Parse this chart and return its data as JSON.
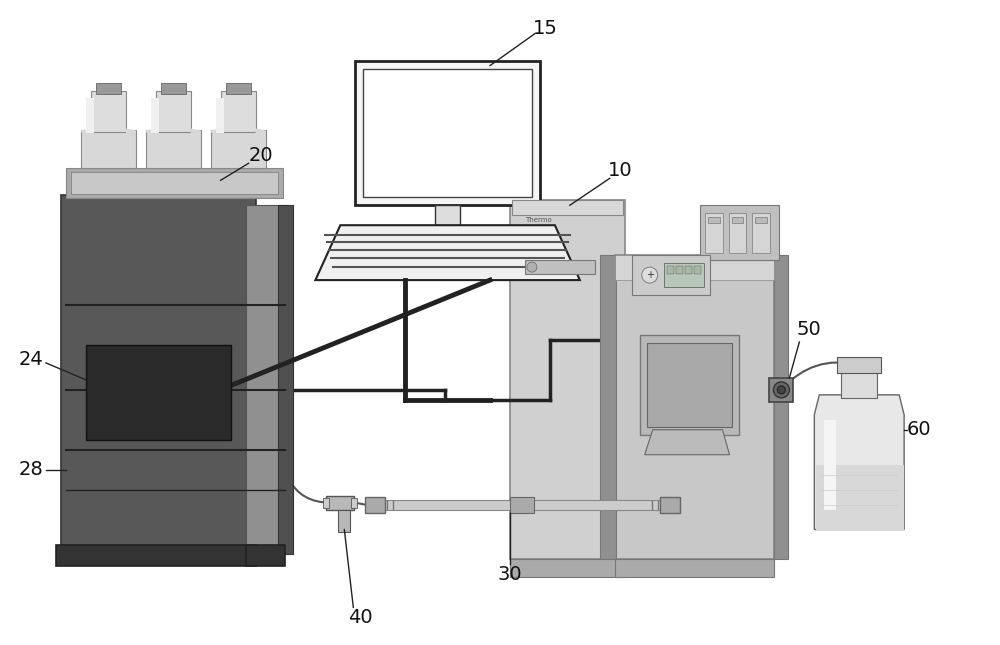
{
  "background_color": "#ffffff",
  "fig_width": 10.0,
  "fig_height": 6.45,
  "label_fs": 14,
  "arrow_lw": 1.0,
  "tube_lw": 1.5,
  "tube_color": "#555555"
}
